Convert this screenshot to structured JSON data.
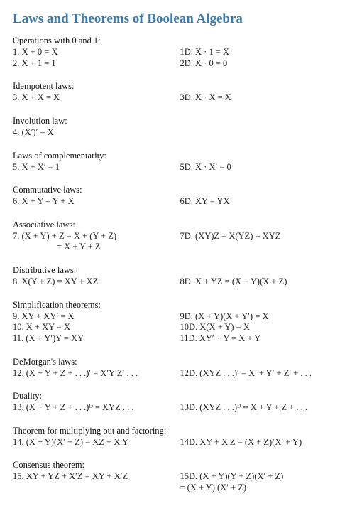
{
  "title": "Laws and Theorems of Boolean Algebra",
  "sections": [
    {
      "heading": "Operations with 0 and 1:",
      "rows": [
        {
          "left": "1.  X + 0 = X",
          "right": "1D.  X · 1 = X"
        },
        {
          "left": "2.  X + 1 = 1",
          "right": "2D.  X · 0 = 0"
        }
      ]
    },
    {
      "heading": "Idempotent laws:",
      "rows": [
        {
          "left": "3.  X + X = X",
          "right": "3D.  X · X = X"
        }
      ]
    },
    {
      "heading": "Involution law:",
      "rows": [
        {
          "left": "4.  (X′)′ = X",
          "right": ""
        }
      ]
    },
    {
      "heading": "Laws of complementarity:",
      "rows": [
        {
          "left": "5.  X + X′ = 1",
          "right": "5D.  X · X′ = 0"
        }
      ]
    },
    {
      "heading": "Commutative laws:",
      "rows": [
        {
          "left": "6.  X + Y = Y + X",
          "right": "6D.  XY = YX"
        }
      ]
    },
    {
      "heading": "Associative laws:",
      "rows": [
        {
          "left": "7.  (X + Y) + Z = X + (Y + Z)",
          "right": "7D.  (XY)Z = X(YZ) = XYZ"
        },
        {
          "left": "= X + Y + Z",
          "right": "",
          "continuation": true
        }
      ]
    },
    {
      "heading": "Distributive laws:",
      "rows": [
        {
          "left": "8.  X(Y + Z) = XY + XZ",
          "right": "8D.  X + YZ = (X + Y)(X + Z)"
        }
      ]
    },
    {
      "heading": "Simplification theorems:",
      "rows": [
        {
          "left": "9.  XY + XY′ = X",
          "right": "9D.  (X + Y)(X + Y′) = X"
        },
        {
          "left": "10.  X + XY = X",
          "right": "10D.  X(X + Y) = X"
        },
        {
          "left": "11.  (X + Y′)Y = XY",
          "right": "11D.  XY′ + Y = X + Y"
        }
      ]
    },
    {
      "heading": "DeMorgan's laws:",
      "rows": [
        {
          "left": "12.  (X + Y + Z + . . .)′ = X′Y′Z′ . . .",
          "right": "12D.  (XYZ . . .)′ = X′ + Y′ + Z′ + . . ."
        }
      ]
    },
    {
      "heading": "Duality:",
      "rows": [
        {
          "left": "13.  (X + Y + Z + . . .)ᴰ = XYZ . . .",
          "right": "13D.  (XYZ . . .)ᴰ = X + Y + Z + . . ."
        }
      ]
    },
    {
      "heading": "Theorem for multiplying out and factoring:",
      "rows": [
        {
          "left": "14.  (X + Y)(X′ + Z) = XZ + X′Y",
          "right": "14D.  XY + X′Z = (X + Z)(X′ + Y)"
        }
      ]
    },
    {
      "heading": "Consensus theorem:",
      "rows": [
        {
          "left": "15.  XY + YZ + X′Z = XY + X′Z",
          "right": "15D.  (X + Y)(Y + Z)(X′ + Z)"
        },
        {
          "left": "",
          "right": "        = (X + Y) (X′ + Z)"
        }
      ]
    }
  ]
}
